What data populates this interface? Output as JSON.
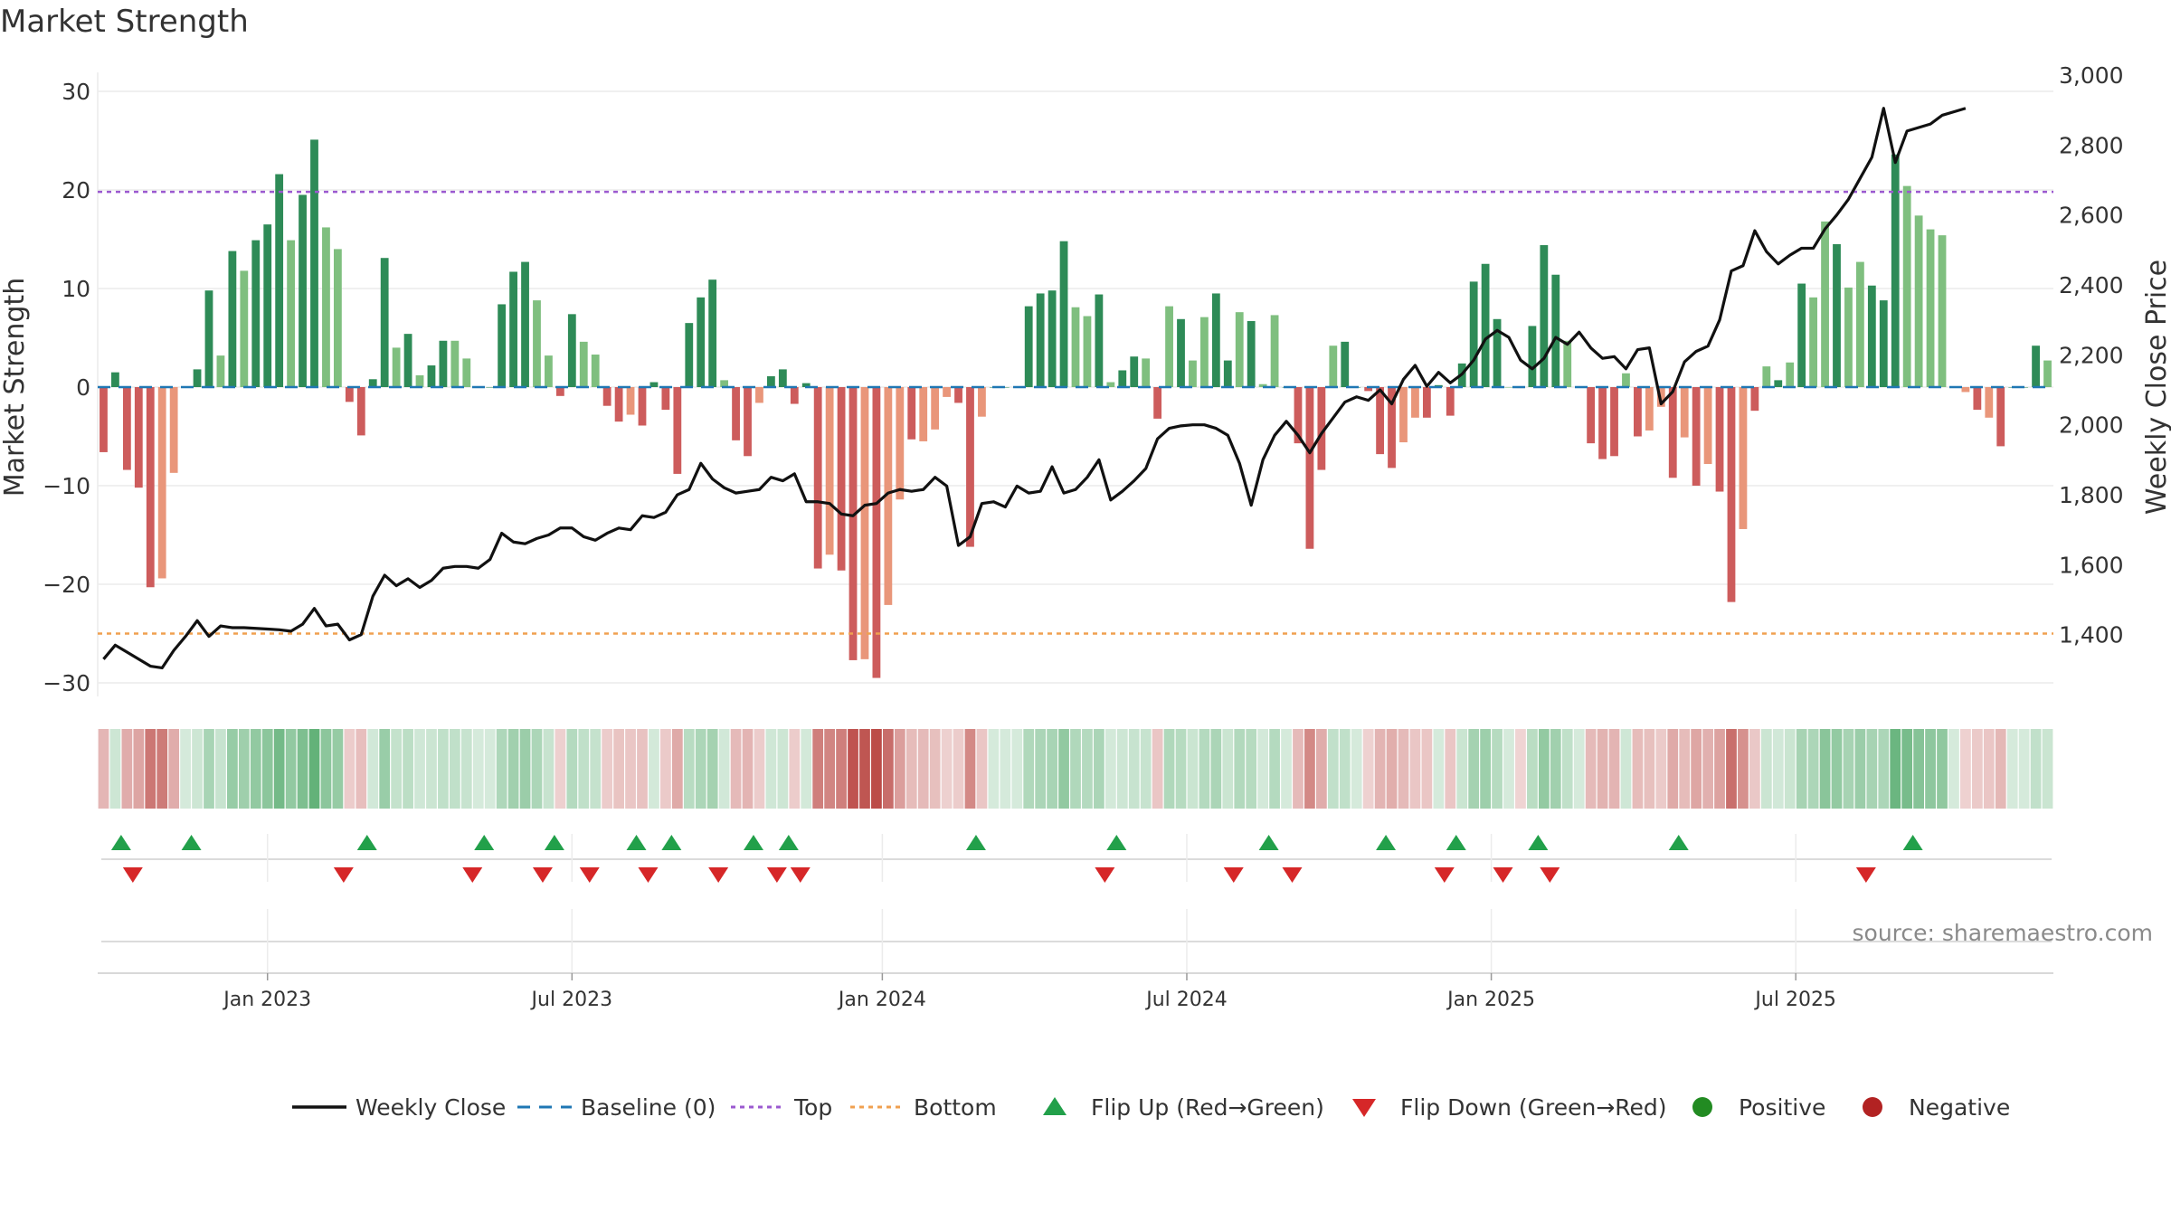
{
  "chart_data": {
    "type": "bar",
    "title": "Market Strength",
    "ylabel_left": "Market Strength",
    "ylabel_right": "Weekly Close Price",
    "ylim_left": [
      -35,
      32
    ],
    "ylim_right": [
      1230,
      3000
    ],
    "yticks_left": [
      "30",
      "20",
      "10",
      "0",
      "−10",
      "−20",
      "−30"
    ],
    "yticks_left_values": [
      30,
      20,
      10,
      0,
      -10,
      -20,
      -30
    ],
    "yticks_right": [
      "3,000",
      "2,800",
      "2,600",
      "2,400",
      "2,200",
      "2,000",
      "1,800",
      "1,600",
      "1,400"
    ],
    "yticks_right_values": [
      3000,
      2800,
      2600,
      2400,
      2200,
      2000,
      1800,
      1600,
      1400
    ],
    "x_ticks": [
      "Jan 2023",
      "Jul 2023",
      "Jan 2024",
      "Jul 2024",
      "Jan 2025",
      "Jul 2025"
    ],
    "x_tick_week_index": [
      14,
      40,
      66.5,
      92.5,
      118.5,
      144.5
    ],
    "top_line": 19.8,
    "bottom_line": -25,
    "baseline": 0,
    "grid": true,
    "legend_position": "bottom",
    "colors": {
      "weekly_close": "#111111",
      "baseline": "#1f77b4",
      "top": "#9b59d0",
      "bottom": "#f0a050",
      "flip_up": "#22a04a",
      "flip_down": "#d62728",
      "positive": "#228b22",
      "negative": "#b22222",
      "pos_strong": "#2e8b57",
      "pos_light": "#7fbf7f",
      "neg_strong": "#cd5c5c",
      "neg_light": "#e9967a"
    },
    "market_strength": [
      -6.6,
      1.5,
      -8.4,
      -10.2,
      -20.3,
      -19.4,
      -8.7,
      0,
      1.8,
      9.8,
      3.2,
      13.8,
      11.8,
      14.9,
      16.5,
      21.6,
      14.9,
      19.5,
      25.1,
      16.2,
      14,
      -1.5,
      -4.9,
      0.8,
      13.1,
      4,
      5.4,
      1.2,
      2.2,
      4.7,
      4.7,
      2.9,
      0,
      0,
      8.4,
      11.7,
      12.7,
      8.8,
      3.2,
      -0.9,
      7.4,
      4.6,
      3.3,
      -1.9,
      -3.5,
      -2.8,
      -3.9,
      0.5,
      -2.3,
      -8.8,
      6.5,
      9.1,
      10.9,
      0.7,
      -5.4,
      -7,
      -1.6,
      1.1,
      1.8,
      -1.7,
      0.4,
      -18.4,
      -17,
      -18.6,
      -27.7,
      -27.6,
      -29.5,
      -22.1,
      -11.4,
      -5.3,
      -5.5,
      -4.3,
      -1,
      -1.6,
      -16.2,
      -3,
      0,
      0,
      0,
      8.2,
      9.5,
      9.8,
      14.8,
      8.1,
      7.2,
      9.4,
      0.5,
      1.7,
      3.1,
      2.9,
      -3.2,
      8.2,
      6.9,
      2.7,
      7.1,
      9.5,
      2.7,
      7.6,
      6.7,
      0.3,
      7.3,
      0,
      -5.7,
      -16.4,
      -8.4,
      4.2,
      4.6,
      0,
      -0.4,
      -6.8,
      -8.2,
      -5.6,
      -3.1,
      -3.1,
      0.2,
      -2.9,
      2.4,
      10.7,
      12.5,
      6.9,
      0,
      -0.1,
      6.2,
      14.4,
      11.4,
      4.7,
      0,
      -5.7,
      -7.3,
      -7,
      1.4,
      -5,
      -4.4,
      -2,
      -9.2,
      -5.1,
      -10,
      -7.8,
      -10.6,
      -21.8,
      -14.4,
      -2.4,
      2.1,
      0.7,
      2.5,
      10.5,
      9.1,
      16.8,
      14.5,
      10.1,
      12.7,
      10.3,
      8.8,
      23.6,
      20.4,
      17.4,
      16,
      15.4,
      0,
      -0.5,
      -2.3,
      -3.1,
      -6,
      0,
      0,
      4.2,
      2.7
    ],
    "strength_shade": [
      1,
      1,
      1,
      1,
      1,
      0,
      0,
      1,
      1,
      1,
      0,
      1,
      0,
      1,
      1,
      1,
      0,
      1,
      1,
      0,
      0,
      1,
      1,
      1,
      1,
      0,
      1,
      0,
      1,
      1,
      0,
      0,
      1,
      1,
      1,
      1,
      1,
      0,
      0,
      1,
      1,
      0,
      0,
      1,
      1,
      0,
      1,
      1,
      1,
      1,
      1,
      1,
      1,
      0,
      1,
      1,
      0,
      1,
      1,
      1,
      1,
      1,
      0,
      1,
      1,
      0,
      1,
      0,
      0,
      1,
      0,
      0,
      0,
      1,
      1,
      0,
      1,
      1,
      1,
      1,
      1,
      1,
      1,
      0,
      0,
      1,
      0,
      1,
      1,
      0,
      1,
      0,
      1,
      0,
      0,
      1,
      1,
      0,
      1,
      0,
      0,
      1,
      1,
      1,
      1,
      0,
      1,
      1,
      1,
      1,
      1,
      0,
      0,
      1,
      1,
      1,
      1,
      1,
      1,
      1,
      0,
      0,
      1,
      1,
      1,
      0,
      0,
      1,
      1,
      1,
      0,
      1,
      0,
      0,
      1,
      0,
      1,
      0,
      1,
      1,
      0,
      1,
      0,
      1,
      0,
      1,
      0,
      0,
      1,
      0,
      0,
      1,
      1,
      1,
      0,
      0,
      0,
      0,
      1,
      0,
      1,
      0,
      1,
      1,
      1,
      1,
      0
    ],
    "weekly_close": [
      1330,
      1370,
      1350,
      1330,
      1310,
      1305,
      1355,
      1395,
      1440,
      1395,
      1425,
      1420,
      1420,
      1418,
      1416,
      1414,
      1410,
      1430,
      1475,
      1425,
      1430,
      1385,
      1400,
      1510,
      1570,
      1540,
      1560,
      1535,
      1555,
      1590,
      1595,
      1595,
      1590,
      1615,
      1690,
      1665,
      1660,
      1675,
      1685,
      1705,
      1705,
      1680,
      1670,
      1690,
      1705,
      1700,
      1740,
      1735,
      1750,
      1800,
      1815,
      1890,
      1845,
      1820,
      1805,
      1810,
      1815,
      1850,
      1840,
      1860,
      1780,
      1780,
      1775,
      1745,
      1740,
      1770,
      1775,
      1805,
      1815,
      1810,
      1815,
      1850,
      1825,
      1655,
      1680,
      1775,
      1780,
      1765,
      1825,
      1805,
      1810,
      1880,
      1805,
      1815,
      1850,
      1900,
      1785,
      1810,
      1840,
      1875,
      1960,
      1990,
      1997,
      2000,
      2000,
      1990,
      1970,
      1890,
      1770,
      1900,
      1970,
      2010,
      1970,
      1920,
      1975,
      2020,
      2065,
      2080,
      2070,
      2100,
      2060,
      2130,
      2170,
      2110,
      2150,
      2120,
      2145,
      2185,
      2245,
      2270,
      2250,
      2185,
      2160,
      2190,
      2250,
      2230,
      2265,
      2220,
      2190,
      2195,
      2160,
      2215,
      2220,
      2060,
      2095,
      2180,
      2210,
      2225,
      2300,
      2440,
      2455,
      2555,
      2495,
      2460,
      2485,
      2505,
      2505,
      2560,
      2600,
      2645,
      2705,
      2765,
      2905,
      2750,
      2840,
      2850,
      2860,
      2885,
      2895,
      2905
    ],
    "flip_up_weeks": [
      1.5,
      7.5,
      22.5,
      32.5,
      38.5,
      45.5,
      48.5,
      55.5,
      58.5,
      74.5,
      86.5,
      99.5,
      109.5,
      115.5,
      122.5,
      134.5,
      154.5
    ],
    "flip_down_weeks": [
      2.5,
      20.5,
      31.5,
      37.5,
      41.5,
      46.5,
      52.5,
      57.5,
      59.5,
      85.5,
      96.5,
      101.5,
      114.5,
      119.5,
      123.5,
      150.5
    ],
    "source": "source: sharemaestro.com",
    "legend": [
      "Weekly Close",
      "Baseline (0)",
      "Top",
      "Bottom",
      "Flip Up (Red→Green)",
      "Flip Down (Green→Red)",
      "Positive",
      "Negative"
    ]
  }
}
